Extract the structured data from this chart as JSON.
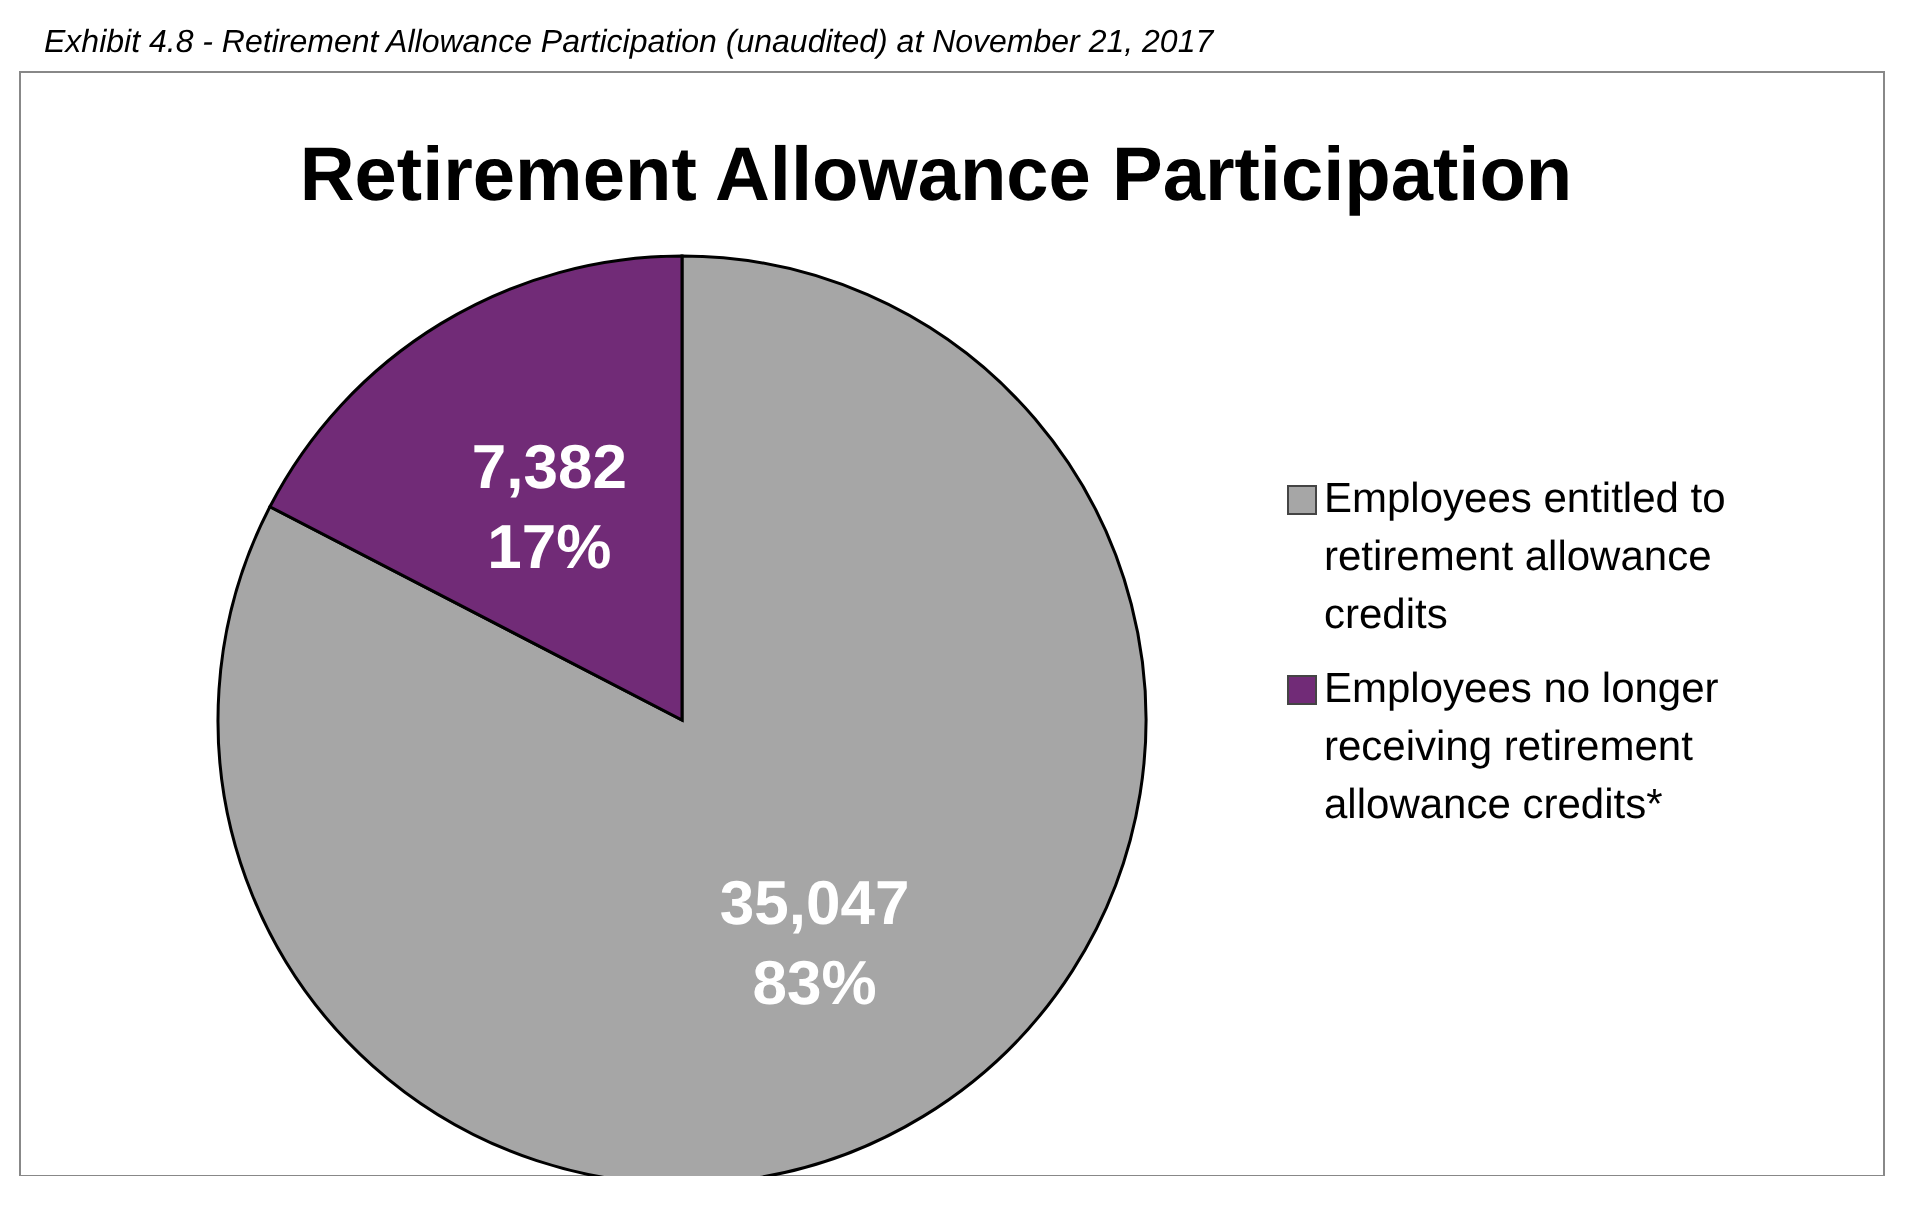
{
  "chart_data": {
    "type": "pie",
    "title": "Retirement Allowance Participation",
    "annotations": [
      "Exhibit 4.8 - Retirement Allowance Participation (unaudited) at November 21, 2017"
    ],
    "categories": [
      "Employees entitled to retirement allowance credits",
      "Employees no longer receiving retirement allowance credits*"
    ],
    "values": [
      35047,
      7382
    ],
    "colors": [
      "#a6a6a6",
      "#712b77"
    ],
    "value_labels": [
      "35,047\n83%",
      "7,382\n17%"
    ],
    "legend": "right"
  }
}
